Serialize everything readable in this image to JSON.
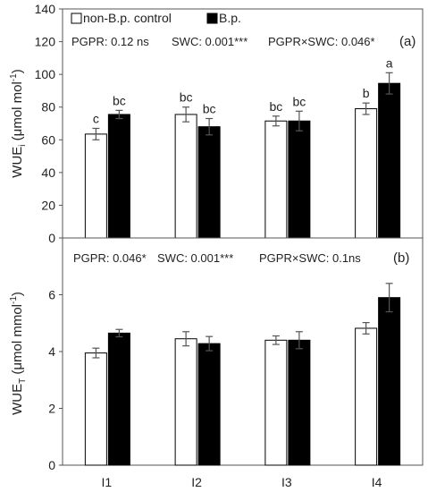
{
  "chart_data": [
    {
      "type": "bar",
      "panel_label": "(a)",
      "categories": [
        "I1",
        "I2",
        "I3",
        "I4"
      ],
      "ylabel": "WUE",
      "ylabel_sub": "i",
      "ylabel_unit_pre": " (μmol mol",
      "ylabel_unit_sup": "-1",
      "ylabel_unit_post": ")",
      "ylim": [
        0,
        140
      ],
      "yticks": [
        "0",
        "20",
        "40",
        "60",
        "80",
        "100",
        "120",
        "140"
      ],
      "yticks_values": [
        0,
        20,
        40,
        60,
        80,
        100,
        120,
        140
      ],
      "stats": {
        "pgpr": "PGPR: 0.12 ns",
        "swc": "SWC: 0.001***",
        "interaction": "PGPR×SWC: 0.046*"
      },
      "series": [
        {
          "name": "non-B.p. control",
          "color": "#ffffff",
          "values": [
            63.5,
            75.5,
            71.5,
            79
          ],
          "errors": [
            3.5,
            4.5,
            3,
            3.5
          ],
          "letters": [
            "c",
            "bc",
            "bc",
            "b"
          ]
        },
        {
          "name": "B.p.",
          "color": "#000000",
          "values": [
            75.5,
            68,
            71.5,
            94.5
          ],
          "errors": [
            2.5,
            5,
            6,
            6.5
          ],
          "letters": [
            "bc",
            "bc",
            "bc",
            "a"
          ]
        }
      ]
    },
    {
      "type": "bar",
      "panel_label": "(b)",
      "categories": [
        "I1",
        "I2",
        "I3",
        "I4"
      ],
      "ylabel": "WUE",
      "ylabel_sub": "T",
      "ylabel_unit_pre": " (μmol mmol",
      "ylabel_unit_sup": "-1",
      "ylabel_unit_post": ")",
      "ylim": [
        0,
        8
      ],
      "yticks": [
        "0",
        "2",
        "4",
        "6"
      ],
      "yticks_values": [
        0,
        2,
        4,
        6
      ],
      "stats": {
        "pgpr": "PGPR: 0.046*",
        "swc": "SWC: 0.001***",
        "interaction": "PGPR×SWC: 0.1ns"
      },
      "series": [
        {
          "name": "non-B.p. control",
          "color": "#ffffff",
          "values": [
            3.95,
            4.45,
            4.4,
            4.82
          ],
          "errors": [
            0.17,
            0.25,
            0.15,
            0.2
          ]
        },
        {
          "name": "B.p.",
          "color": "#000000",
          "values": [
            4.65,
            4.28,
            4.4,
            5.9
          ],
          "errors": [
            0.13,
            0.25,
            0.3,
            0.5
          ]
        }
      ]
    }
  ]
}
